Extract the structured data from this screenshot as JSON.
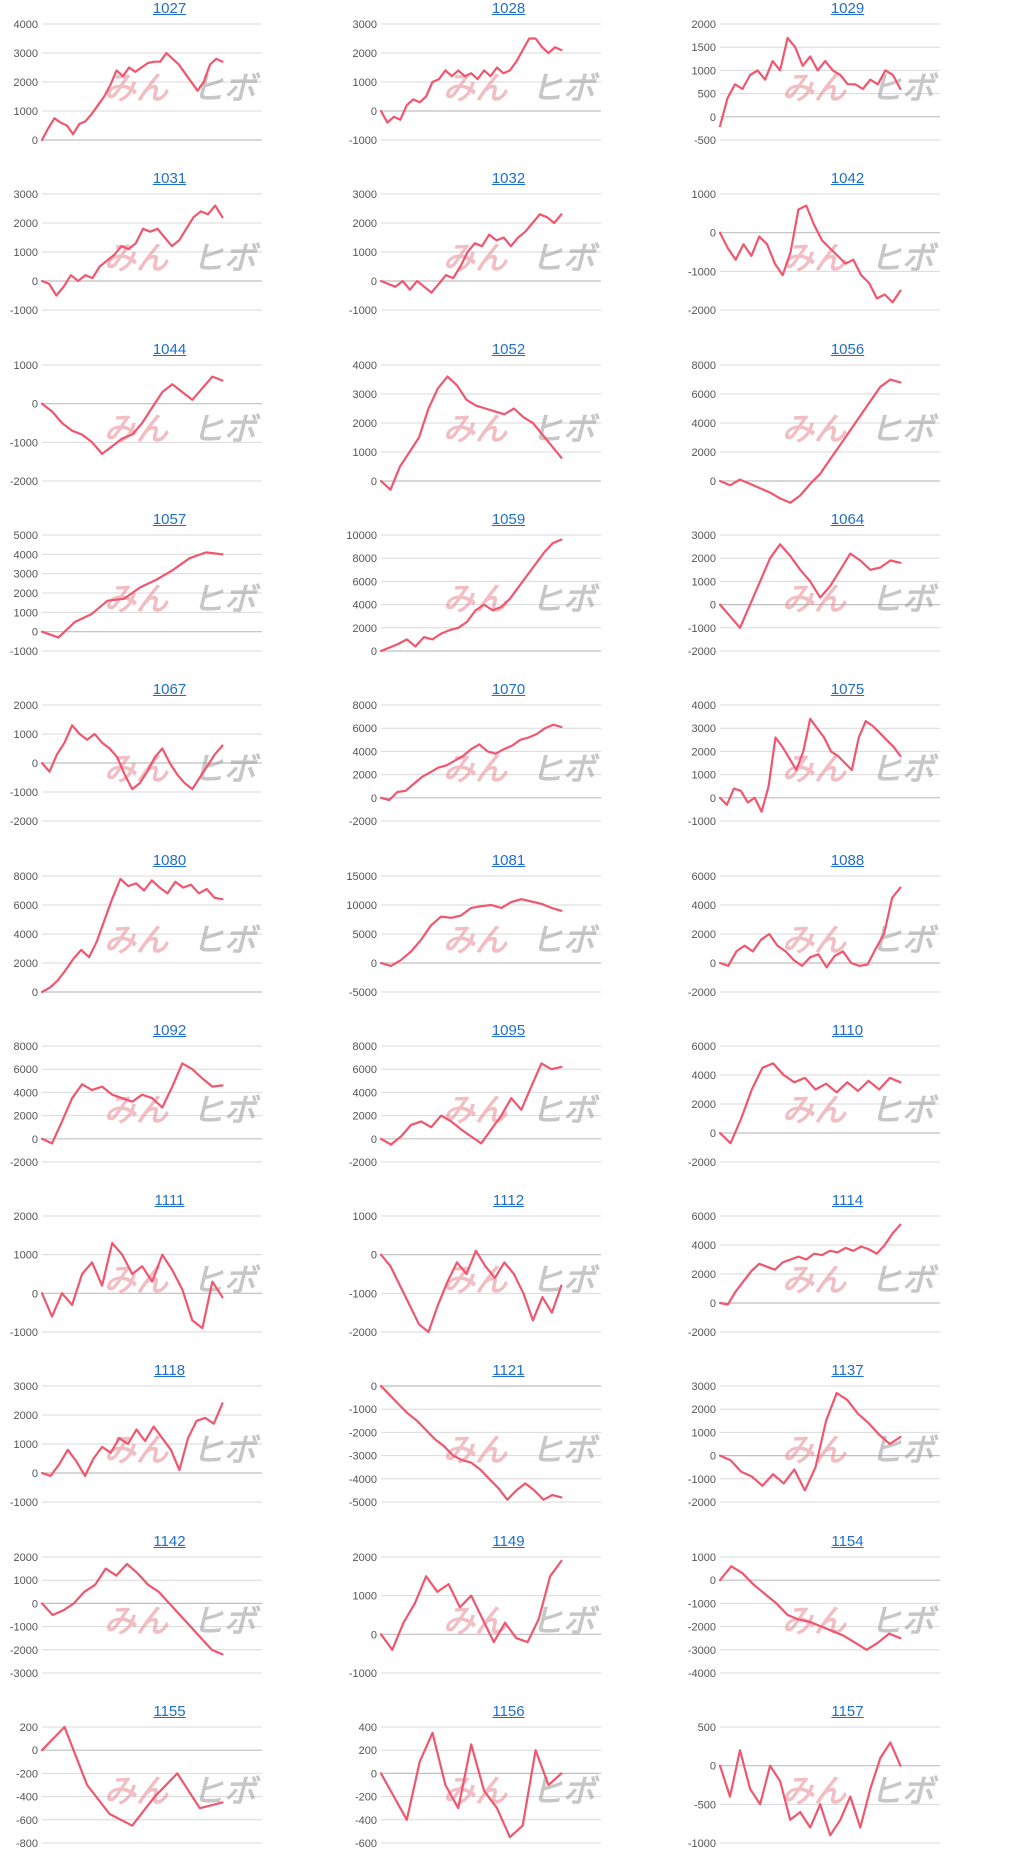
{
  "watermark": {
    "part1": "みん",
    "part2": "ヒボ"
  },
  "colors": {
    "line": "#f0566e",
    "title": "#1f6fcf",
    "grid": "#d9d9d9",
    "zero_axis": "#bfbfbf",
    "tick": "#555555"
  },
  "chart_data": [
    {
      "type": "line",
      "title": "1027",
      "yticks": [
        0,
        1000,
        2000,
        3000,
        4000
      ],
      "ylim": [
        0,
        4000
      ],
      "values": [
        0,
        400,
        750,
        600,
        500,
        200,
        550,
        650,
        900,
        1200,
        1500,
        1900,
        2400,
        2200,
        2500,
        2350,
        2500,
        2650,
        2700,
        2700,
        3000,
        2800,
        2600,
        2300,
        2000,
        1700,
        2000,
        2600,
        2800,
        2700
      ]
    },
    {
      "type": "line",
      "title": "1028",
      "yticks": [
        -1000,
        0,
        1000,
        2000,
        3000
      ],
      "ylim": [
        -1000,
        3000
      ],
      "values": [
        0,
        -400,
        -200,
        -300,
        200,
        400,
        300,
        500,
        1000,
        1100,
        1400,
        1200,
        1400,
        1200,
        1300,
        1100,
        1400,
        1200,
        1500,
        1300,
        1400,
        1700,
        2100,
        2500,
        2500,
        2200,
        2000,
        2200,
        2100
      ]
    },
    {
      "type": "line",
      "title": "1029",
      "yticks": [
        -500,
        0,
        500,
        1000,
        1500,
        2000
      ],
      "ylim": [
        -500,
        2000
      ],
      "values": [
        -200,
        400,
        700,
        600,
        900,
        1000,
        800,
        1200,
        1000,
        1700,
        1500,
        1100,
        1300,
        1000,
        1200,
        1000,
        900,
        700,
        700,
        600,
        800,
        700,
        1000,
        900,
        600
      ]
    },
    {
      "type": "line",
      "title": "1031",
      "yticks": [
        -1000,
        0,
        1000,
        2000,
        3000
      ],
      "ylim": [
        -1000,
        3000
      ],
      "values": [
        0,
        -100,
        -500,
        -200,
        200,
        0,
        200,
        100,
        500,
        700,
        900,
        1200,
        1100,
        1300,
        1800,
        1700,
        1800,
        1500,
        1200,
        1400,
        1800,
        2200,
        2400,
        2300,
        2600,
        2200
      ]
    },
    {
      "type": "line",
      "title": "1032",
      "yticks": [
        -1000,
        0,
        1000,
        2000,
        3000
      ],
      "ylim": [
        -1000,
        3000
      ],
      "values": [
        0,
        -100,
        -200,
        0,
        -300,
        0,
        -200,
        -400,
        -100,
        200,
        100,
        500,
        1000,
        1300,
        1200,
        1600,
        1400,
        1500,
        1200,
        1500,
        1700,
        2000,
        2300,
        2200,
        2000,
        2300
      ]
    },
    {
      "type": "line",
      "title": "1042",
      "yticks": [
        -2000,
        -1000,
        0,
        1000
      ],
      "ylim": [
        -2000,
        1000
      ],
      "values": [
        0,
        -400,
        -700,
        -300,
        -600,
        -100,
        -300,
        -800,
        -1100,
        -500,
        600,
        700,
        200,
        -200,
        -400,
        -600,
        -800,
        -700,
        -1100,
        -1300,
        -1700,
        -1600,
        -1800,
        -1500
      ]
    },
    {
      "type": "line",
      "title": "1044",
      "yticks": [
        -2000,
        -1000,
        0,
        1000
      ],
      "ylim": [
        -2000,
        1000
      ],
      "values": [
        0,
        -200,
        -500,
        -700,
        -800,
        -1000,
        -1300,
        -1100,
        -900,
        -800,
        -500,
        -100,
        300,
        500,
        300,
        100,
        400,
        700,
        600
      ]
    },
    {
      "type": "line",
      "title": "1052",
      "yticks": [
        0,
        1000,
        2000,
        3000,
        4000
      ],
      "ylim": [
        0,
        4000
      ],
      "values": [
        0,
        -300,
        500,
        1000,
        1500,
        2500,
        3200,
        3600,
        3300,
        2800,
        2600,
        2500,
        2400,
        2300,
        2500,
        2200,
        2000,
        1600,
        1200,
        800
      ]
    },
    {
      "type": "line",
      "title": "1056",
      "yticks": [
        0,
        2000,
        4000,
        6000,
        8000
      ],
      "ylim": [
        0,
        8000
      ],
      "values": [
        0,
        -300,
        100,
        -200,
        -500,
        -800,
        -1200,
        -1500,
        -1000,
        -200,
        500,
        1500,
        2500,
        3500,
        4500,
        5500,
        6500,
        7000,
        6800
      ]
    },
    {
      "type": "line",
      "title": "1057",
      "yticks": [
        -1000,
        0,
        1000,
        2000,
        3000,
        4000,
        5000
      ],
      "ylim": [
        -1000,
        5000
      ],
      "values": [
        0,
        -300,
        500,
        900,
        1600,
        1700,
        2300,
        2700,
        3200,
        3800,
        4100,
        4000
      ]
    },
    {
      "type": "line",
      "title": "1059",
      "yticks": [
        0,
        2000,
        4000,
        6000,
        8000,
        10000
      ],
      "ylim": [
        0,
        10000
      ],
      "values": [
        0,
        300,
        600,
        1000,
        400,
        1200,
        1000,
        1500,
        1800,
        2000,
        2500,
        3500,
        4000,
        3500,
        3800,
        4500,
        5500,
        6500,
        7500,
        8500,
        9300,
        9600
      ]
    },
    {
      "type": "line",
      "title": "1064",
      "yticks": [
        -2000,
        -1000,
        0,
        1000,
        2000,
        3000
      ],
      "ylim": [
        -2000,
        3000
      ],
      "values": [
        0,
        -500,
        -1000,
        0,
        1000,
        2000,
        2600,
        2100,
        1500,
        1000,
        300,
        800,
        1500,
        2200,
        1900,
        1500,
        1600,
        1900,
        1800
      ]
    },
    {
      "type": "line",
      "title": "1067",
      "yticks": [
        -2000,
        -1000,
        0,
        1000,
        2000
      ],
      "ylim": [
        -2000,
        2000
      ],
      "values": [
        0,
        -300,
        300,
        700,
        1300,
        1000,
        800,
        1000,
        700,
        500,
        200,
        -400,
        -900,
        -700,
        -300,
        200,
        500,
        0,
        -400,
        -700,
        -900,
        -500,
        -100,
        300,
        600
      ]
    },
    {
      "type": "line",
      "title": "1070",
      "yticks": [
        -2000,
        0,
        2000,
        4000,
        6000,
        8000
      ],
      "ylim": [
        -2000,
        8000
      ],
      "values": [
        0,
        -200,
        500,
        600,
        1200,
        1800,
        2200,
        2600,
        2800,
        3200,
        3600,
        4200,
        4600,
        4000,
        3800,
        4200,
        4500,
        5000,
        5200,
        5500,
        6000,
        6300,
        6100
      ]
    },
    {
      "type": "line",
      "title": "1075",
      "yticks": [
        -1000,
        0,
        1000,
        2000,
        3000,
        4000
      ],
      "ylim": [
        -1000,
        4000
      ],
      "values": [
        0,
        -300,
        400,
        300,
        -200,
        0,
        -600,
        500,
        2600,
        2200,
        1700,
        1200,
        2000,
        3400,
        3000,
        2600,
        2000,
        1800,
        1500,
        1200,
        2600,
        3300,
        3100,
        2800,
        2500,
        2200,
        1800
      ]
    },
    {
      "type": "line",
      "title": "1080",
      "yticks": [
        0,
        2000,
        4000,
        6000,
        8000
      ],
      "ylim": [
        0,
        8000
      ],
      "values": [
        0,
        300,
        800,
        1500,
        2300,
        2900,
        2400,
        3500,
        5000,
        6500,
        7800,
        7300,
        7500,
        7000,
        7700,
        7200,
        6800,
        7600,
        7200,
        7400,
        6800,
        7100,
        6500,
        6400
      ]
    },
    {
      "type": "line",
      "title": "1081",
      "yticks": [
        -5000,
        0,
        5000,
        10000,
        15000
      ],
      "ylim": [
        -5000,
        15000
      ],
      "values": [
        0,
        -500,
        500,
        2000,
        4000,
        6500,
        8000,
        7800,
        8200,
        9500,
        9800,
        10000,
        9500,
        10500,
        11000,
        10600,
        10200,
        9500,
        9000
      ]
    },
    {
      "type": "line",
      "title": "1088",
      "yticks": [
        -2000,
        0,
        2000,
        4000,
        6000
      ],
      "ylim": [
        -2000,
        6000
      ],
      "values": [
        0,
        -200,
        800,
        1200,
        800,
        1600,
        2000,
        1200,
        800,
        200,
        -200,
        400,
        600,
        -300,
        500,
        800,
        0,
        -200,
        -100,
        1000,
        2000,
        4500,
        5200
      ]
    },
    {
      "type": "line",
      "title": "1092",
      "yticks": [
        -2000,
        0,
        2000,
        4000,
        6000,
        8000
      ],
      "ylim": [
        -2000,
        8000
      ],
      "values": [
        0,
        -400,
        1500,
        3500,
        4700,
        4200,
        4500,
        3800,
        3500,
        3200,
        3800,
        3500,
        2700,
        4500,
        6500,
        6000,
        5200,
        4500,
        4600
      ]
    },
    {
      "type": "line",
      "title": "1095",
      "yticks": [
        -2000,
        0,
        2000,
        4000,
        6000,
        8000
      ],
      "ylim": [
        -2000,
        8000
      ],
      "values": [
        0,
        -500,
        200,
        1200,
        1500,
        1000,
        2000,
        1500,
        800,
        200,
        -400,
        800,
        2000,
        3500,
        2500,
        4500,
        6500,
        6000,
        6200
      ]
    },
    {
      "type": "line",
      "title": "1110",
      "yticks": [
        -2000,
        0,
        2000,
        4000,
        6000
      ],
      "ylim": [
        -2000,
        6000
      ],
      "values": [
        0,
        -700,
        1000,
        3000,
        4500,
        4800,
        4000,
        3500,
        3800,
        3000,
        3400,
        2800,
        3500,
        2900,
        3600,
        3000,
        3800,
        3500
      ]
    },
    {
      "type": "line",
      "title": "1111",
      "yticks": [
        -1000,
        0,
        1000,
        2000
      ],
      "ylim": [
        -1000,
        2000
      ],
      "values": [
        0,
        -600,
        0,
        -300,
        500,
        800,
        200,
        1300,
        1000,
        500,
        700,
        300,
        1000,
        600,
        100,
        -700,
        -900,
        300,
        -100
      ]
    },
    {
      "type": "line",
      "title": "1112",
      "yticks": [
        -2000,
        -1000,
        0,
        1000
      ],
      "ylim": [
        -2000,
        1000
      ],
      "values": [
        0,
        -300,
        -800,
        -1300,
        -1800,
        -2000,
        -1300,
        -700,
        -200,
        -500,
        100,
        -300,
        -600,
        -200,
        -500,
        -1000,
        -1700,
        -1100,
        -1500,
        -800
      ]
    },
    {
      "type": "line",
      "title": "1114",
      "yticks": [
        -2000,
        0,
        2000,
        4000,
        6000
      ],
      "ylim": [
        -2000,
        6000
      ],
      "values": [
        0,
        -100,
        800,
        1500,
        2200,
        2700,
        2500,
        2300,
        2800,
        3000,
        3200,
        3000,
        3400,
        3300,
        3600,
        3500,
        3800,
        3600,
        3900,
        3700,
        3400,
        4000,
        4800,
        5400
      ]
    },
    {
      "type": "line",
      "title": "1118",
      "yticks": [
        -1000,
        0,
        1000,
        2000,
        3000
      ],
      "ylim": [
        -1000,
        3000
      ],
      "values": [
        0,
        -100,
        300,
        800,
        400,
        -100,
        500,
        900,
        700,
        1200,
        1000,
        1500,
        1100,
        1600,
        1200,
        800,
        100,
        1200,
        1800,
        1900,
        1700,
        2400
      ]
    },
    {
      "type": "line",
      "title": "1121",
      "yticks": [
        -5000,
        -4000,
        -3000,
        -2000,
        -1000,
        0
      ],
      "ylim": [
        -5000,
        0
      ],
      "values": [
        0,
        -400,
        -800,
        -1200,
        -1500,
        -1900,
        -2300,
        -2600,
        -3000,
        -3200,
        -3300,
        -3600,
        -4000,
        -4400,
        -4900,
        -4500,
        -4200,
        -4500,
        -4900,
        -4700,
        -4800
      ]
    },
    {
      "type": "line",
      "title": "1137",
      "yticks": [
        -2000,
        -1000,
        0,
        1000,
        2000,
        3000
      ],
      "ylim": [
        -2000,
        3000
      ],
      "values": [
        0,
        -200,
        -700,
        -900,
        -1300,
        -800,
        -1200,
        -600,
        -1500,
        -500,
        1500,
        2700,
        2400,
        1800,
        1400,
        900,
        500,
        800
      ]
    },
    {
      "type": "line",
      "title": "1142",
      "yticks": [
        -3000,
        -2000,
        -1000,
        0,
        1000,
        2000
      ],
      "ylim": [
        -3000,
        2000
      ],
      "values": [
        0,
        -500,
        -300,
        0,
        500,
        800,
        1500,
        1200,
        1700,
        1300,
        800,
        500,
        0,
        -500,
        -1000,
        -1500,
        -2000,
        -2200
      ]
    },
    {
      "type": "line",
      "title": "1149",
      "yticks": [
        -1000,
        0,
        1000,
        2000
      ],
      "ylim": [
        -1000,
        2000
      ],
      "values": [
        0,
        -400,
        300,
        800,
        1500,
        1100,
        1300,
        700,
        1000,
        400,
        -200,
        300,
        -100,
        -200,
        400,
        1500,
        1900
      ]
    },
    {
      "type": "line",
      "title": "1154",
      "yticks": [
        -4000,
        -3000,
        -2000,
        -1000,
        0,
        1000
      ],
      "ylim": [
        -4000,
        1000
      ],
      "values": [
        0,
        600,
        300,
        -200,
        -600,
        -1000,
        -1500,
        -1700,
        -1800,
        -2000,
        -2200,
        -2400,
        -2700,
        -3000,
        -2700,
        -2300,
        -2500
      ]
    },
    {
      "type": "line",
      "title": "1155",
      "yticks": [
        -800,
        -600,
        -400,
        -200,
        0,
        200
      ],
      "ylim": [
        -800,
        200
      ],
      "values": [
        0,
        200,
        -300,
        -550,
        -650,
        -400,
        -200,
        -500,
        -450
      ]
    },
    {
      "type": "line",
      "title": "1156",
      "yticks": [
        -600,
        -400,
        -200,
        0,
        200,
        400
      ],
      "ylim": [
        -600,
        400
      ],
      "values": [
        0,
        -200,
        -400,
        100,
        350,
        -100,
        -300,
        250,
        -150,
        -300,
        -550,
        -450,
        200,
        -100,
        0
      ]
    },
    {
      "type": "line",
      "title": "1157",
      "yticks": [
        -1000,
        -500,
        0,
        500
      ],
      "ylim": [
        -1000,
        500
      ],
      "values": [
        0,
        -400,
        200,
        -300,
        -500,
        0,
        -200,
        -700,
        -600,
        -800,
        -500,
        -900,
        -700,
        -400,
        -800,
        -300,
        100,
        300,
        0
      ]
    }
  ]
}
